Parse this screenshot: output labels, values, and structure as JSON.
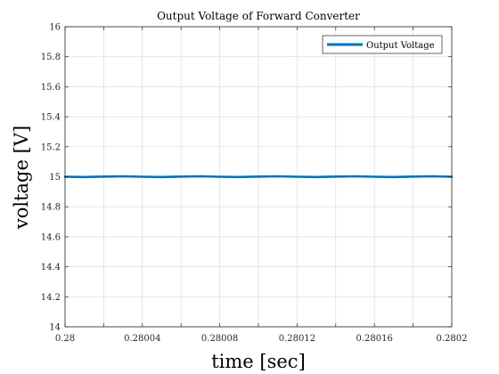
{
  "chart_data": {
    "type": "line",
    "title": "Output Voltage of Forward Converter",
    "xlabel": "time [sec]",
    "ylabel": "voltage [V]",
    "xlim": [
      0.28,
      0.2802
    ],
    "ylim": [
      14,
      16
    ],
    "xticks": [
      0.28,
      0.28004,
      0.28008,
      0.28012,
      0.28016,
      0.2802
    ],
    "xtick_labels": [
      "0.28",
      "0.28004",
      "0.28008",
      "0.28012",
      "0.28016",
      "0.2802"
    ],
    "yticks": [
      14,
      14.2,
      14.4,
      14.6,
      14.8,
      15,
      15.2,
      15.4,
      15.6,
      15.8,
      16
    ],
    "ytick_labels": [
      "14",
      "14.2",
      "14.4",
      "14.6",
      "14.8",
      "15",
      "15.2",
      "15.4",
      "15.6",
      "15.8",
      "16"
    ],
    "minor_xticks": [
      0.28002,
      0.28006,
      0.2801,
      0.28014,
      0.28018
    ],
    "grid": true,
    "legend_location": "top-right",
    "series": [
      {
        "name": "Output Voltage",
        "color": "#0072BD",
        "x": [
          0.28,
          0.28001,
          0.28002,
          0.28003,
          0.28004,
          0.28005,
          0.28006,
          0.28007,
          0.28008,
          0.28009,
          0.2801,
          0.28011,
          0.28012,
          0.28013,
          0.28014,
          0.28015,
          0.28016,
          0.28017,
          0.28018,
          0.28019,
          0.2802
        ],
        "y": [
          15.0,
          14.998,
          15.001,
          15.003,
          15.0,
          14.998,
          15.001,
          15.003,
          15.0,
          14.998,
          15.001,
          15.003,
          15.0,
          14.998,
          15.001,
          15.003,
          15.0,
          14.998,
          15.001,
          15.003,
          15.0
        ]
      }
    ]
  }
}
